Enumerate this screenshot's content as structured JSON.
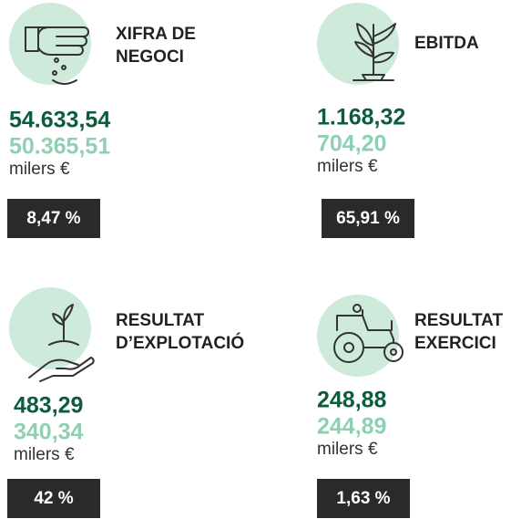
{
  "cards": [
    {
      "title": [
        "XIFRA DE",
        "NEGOCI"
      ],
      "current": "54.633,54",
      "previous": "50.365,51",
      "unit": "milers €",
      "change": "8,47 %"
    },
    {
      "title": [
        "EBITDA"
      ],
      "current": "1.168,32",
      "previous": "704,20",
      "unit": "milers €",
      "change": "65,91 %"
    },
    {
      "title": [
        "RESULTAT",
        "D’EXPLOTACIÓ"
      ],
      "current": "483,29",
      "previous": "340,34",
      "unit": "milers €",
      "change": "42 %"
    },
    {
      "title": [
        "RESULTAT",
        "EXERCICI"
      ],
      "current": "248,88",
      "previous": "244,89",
      "unit": "milers €",
      "change": "1,63 %"
    }
  ]
}
